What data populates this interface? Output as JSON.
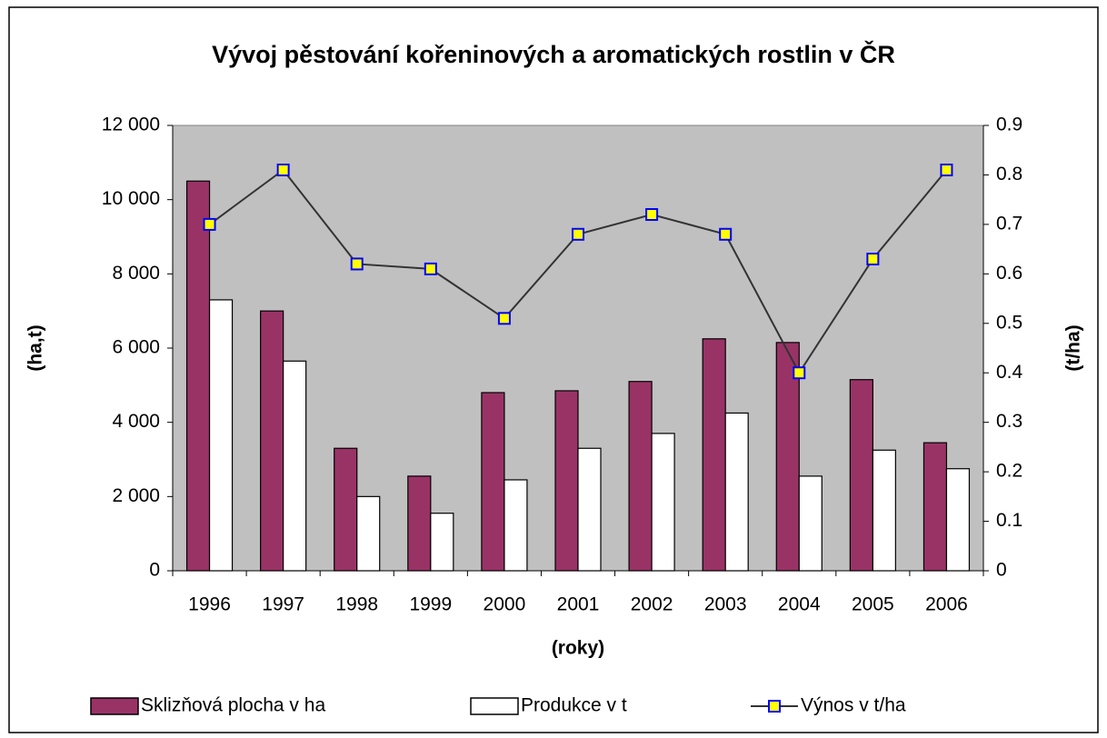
{
  "chart_data": {
    "type": "bar_line",
    "title": "Vývoj pěstování kořeninových a aromatických rostlin v ČR",
    "x_label": "(roky)",
    "y_label": "(ha,t)",
    "y2_label": "(t/ha)",
    "categories": [
      "1996",
      "1997",
      "1998",
      "1999",
      "2000",
      "2001",
      "2002",
      "2003",
      "2004",
      "2005",
      "2006"
    ],
    "series": [
      {
        "name": "Sklizňová plocha v ha",
        "type": "bar",
        "color": "#993366",
        "values": [
          10500,
          7000,
          3300,
          2550,
          4800,
          4850,
          5100,
          6250,
          6150,
          5150,
          3450
        ]
      },
      {
        "name": "Produkce v t",
        "type": "bar",
        "color": "#ffffff",
        "values": [
          7300,
          5650,
          2000,
          1550,
          2450,
          3300,
          3700,
          4250,
          2550,
          3250,
          2750
        ]
      },
      {
        "name": "Výnos v t/ha",
        "type": "line",
        "axis": "y2",
        "color": "#333333",
        "marker_color": "#ffff00",
        "values": [
          0.7,
          0.81,
          0.62,
          0.61,
          0.51,
          0.68,
          0.72,
          0.68,
          0.4,
          0.63,
          0.81
        ]
      }
    ],
    "ylim": [
      0,
      12000
    ],
    "yticks": [
      0,
      {
        "value": 2000,
        "label": "2 000"
      },
      {
        "value": 4000,
        "label": "4 000"
      },
      {
        "value": 6000,
        "label": "6 000"
      },
      {
        "value": 8000,
        "label": "8 000"
      },
      {
        "value": 10000,
        "label": "10 000"
      },
      {
        "value": 12000,
        "label": "12 000"
      }
    ],
    "y2lim": [
      0,
      0.9
    ],
    "y2ticks": [
      0,
      0.1,
      0.2,
      0.3,
      0.4,
      0.5,
      0.6,
      0.7,
      0.8,
      0.9
    ],
    "plot_background": "#c0c0c0",
    "legend": "bottom"
  }
}
